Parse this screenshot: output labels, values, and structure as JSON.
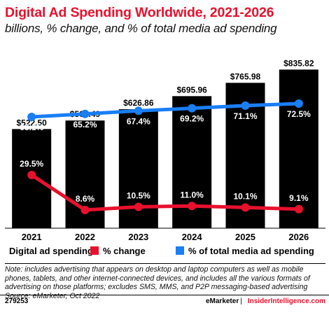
{
  "title": "Digital Ad Spending Worldwide, 2021-2026",
  "subtitle": "billions, % change, and % of total media ad spending",
  "chart_data": {
    "type": "bar",
    "categories": [
      "2021",
      "2022",
      "2023",
      "2024",
      "2025",
      "2026"
    ],
    "series": [
      {
        "name": "Digital ad spending",
        "type": "bar",
        "values": [
          522.5,
          567.49,
          626.86,
          695.96,
          765.98,
          835.82
        ],
        "labels": [
          "$522.50",
          "$567.49",
          "$626.86",
          "$695.96",
          "$765.98",
          "$835.82"
        ],
        "color": "#000000"
      },
      {
        "name": "% change",
        "type": "line",
        "values": [
          29.5,
          8.6,
          10.5,
          11.0,
          10.1,
          9.1
        ],
        "labels": [
          "29.5%",
          "8.6%",
          "10.5%",
          "11.0%",
          "10.1%",
          "9.1%"
        ],
        "color": "#e8112d"
      },
      {
        "name": "% of total media ad spending",
        "type": "line",
        "values": [
          63.1,
          65.2,
          67.4,
          69.2,
          71.1,
          72.5
        ],
        "labels": [
          "63.1%",
          "65.2%",
          "67.4%",
          "69.2%",
          "71.1%",
          "72.5%"
        ],
        "color": "#1a7ef5"
      }
    ],
    "ylim": [
      0,
      900
    ]
  },
  "legend": [
    {
      "label": "Digital ad spending",
      "color": "#000000"
    },
    {
      "label": "% change",
      "color": "#e8112d"
    },
    {
      "label": "% of total media ad spending",
      "color": "#1a7ef5"
    }
  ],
  "note": "Note: includes advertising that appears on desktop and laptop computers as well as mobile phones, tablets, and other internet-connected devices, and includes all the various formats of advertising on those platforms; excludes SMS, MMS, and P2P messaging-based advertising",
  "source": "Source: eMarketer, Oct 2022",
  "footer": {
    "chart_id": "279253",
    "brand1": "eMarketer",
    "separator": "|",
    "brand2": "InsiderIntelligence.com"
  }
}
